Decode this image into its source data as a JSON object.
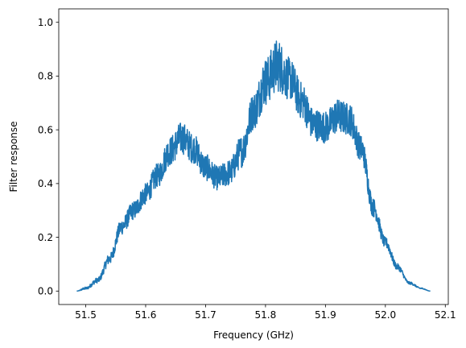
{
  "chart_data": {
    "type": "line",
    "title": "",
    "xlabel": "Frequency (GHz)",
    "ylabel": "Filter response",
    "xlim": [
      51.455,
      52.105
    ],
    "ylim": [
      -0.05,
      1.05
    ],
    "xticks": [
      51.5,
      51.6,
      51.7,
      51.8,
      51.9,
      52.0,
      52.1
    ],
    "xtick_labels": [
      "51.5",
      "51.6",
      "51.7",
      "51.8",
      "51.9",
      "52.0",
      "52.1"
    ],
    "yticks": [
      0.0,
      0.2,
      0.4,
      0.6,
      0.8,
      1.0
    ],
    "ytick_labels": [
      "0.0",
      "0.2",
      "0.4",
      "0.6",
      "0.8",
      "1.0"
    ],
    "grid": false,
    "legend": "none",
    "series_color": "#1f77b4",
    "series": [
      {
        "x": [
          51.485,
          51.5,
          51.52,
          51.54,
          51.56,
          51.58,
          51.6,
          51.62,
          51.64,
          51.66,
          51.68,
          51.7,
          51.72,
          51.74,
          51.76,
          51.78,
          51.8,
          51.82,
          51.84,
          51.86,
          51.88,
          51.9,
          51.92,
          51.94,
          51.96,
          51.98,
          52.0,
          52.02,
          52.04,
          52.06,
          52.075
        ],
        "y": [
          0.0,
          0.01,
          0.04,
          0.12,
          0.24,
          0.3,
          0.36,
          0.43,
          0.52,
          0.57,
          0.53,
          0.46,
          0.42,
          0.44,
          0.52,
          0.67,
          0.78,
          0.84,
          0.79,
          0.71,
          0.62,
          0.61,
          0.65,
          0.64,
          0.53,
          0.31,
          0.18,
          0.09,
          0.03,
          0.01,
          0.0
        ],
        "noise_amp": [
          0.0,
          0.005,
          0.01,
          0.02,
          0.03,
          0.035,
          0.04,
          0.045,
          0.055,
          0.06,
          0.055,
          0.05,
          0.045,
          0.05,
          0.06,
          0.07,
          0.09,
          0.1,
          0.08,
          0.07,
          0.06,
          0.06,
          0.065,
          0.06,
          0.05,
          0.035,
          0.02,
          0.012,
          0.005,
          0.002,
          0.0
        ]
      }
    ]
  }
}
